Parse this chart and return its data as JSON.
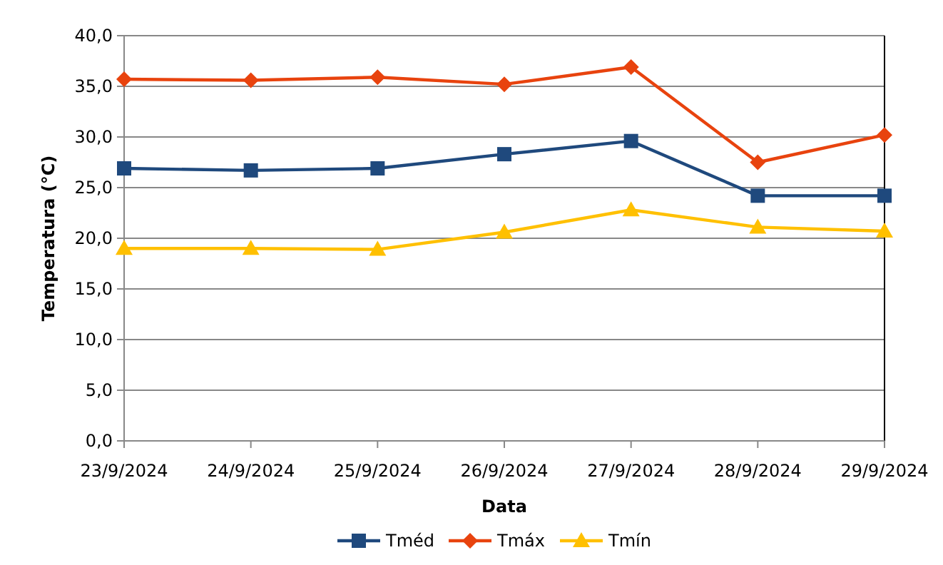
{
  "chart_data": {
    "type": "line",
    "xlabel": "Data",
    "ylabel": "Temperatura (°C)",
    "categories": [
      "23/9/2024",
      "24/9/2024",
      "25/9/2024",
      "26/9/2024",
      "27/9/2024",
      "28/9/2024",
      "29/9/2024"
    ],
    "series": [
      {
        "name": "Tméd",
        "color": "#1f497d",
        "marker": "square",
        "values": [
          26.9,
          26.7,
          26.9,
          28.3,
          29.6,
          24.2,
          24.2
        ]
      },
      {
        "name": "Tmáx",
        "color": "#e8430e",
        "marker": "diamond",
        "values": [
          35.7,
          35.6,
          35.9,
          35.2,
          36.9,
          27.5,
          30.2
        ]
      },
      {
        "name": "Tmín",
        "color": "#ffc000",
        "marker": "triangle",
        "values": [
          19.0,
          19.0,
          18.9,
          20.6,
          22.8,
          21.1,
          20.7
        ]
      }
    ],
    "ylim": [
      0,
      40
    ],
    "yticks": [
      {
        "value": 0,
        "label": "0,0"
      },
      {
        "value": 5,
        "label": "5,0"
      },
      {
        "value": 10,
        "label": "10,0"
      },
      {
        "value": 15,
        "label": "15,0"
      },
      {
        "value": 20,
        "label": "20,0"
      },
      {
        "value": 25,
        "label": "25,0"
      },
      {
        "value": 30,
        "label": "30,0"
      },
      {
        "value": 35,
        "label": "35,0"
      },
      {
        "value": 40,
        "label": "40,0"
      }
    ],
    "grid": "y",
    "legend": "bottom"
  }
}
